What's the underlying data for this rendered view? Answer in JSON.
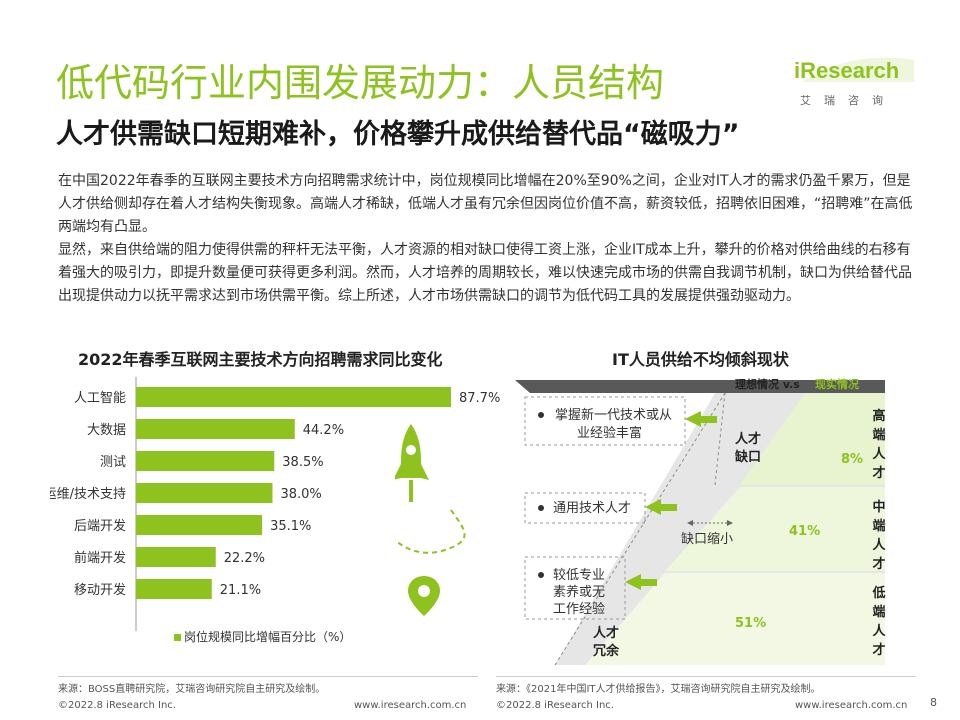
{
  "header": {
    "title": "低代码行业内围发展动力：人员结构",
    "subtitle": "人才供需缺口短期难补，价格攀升成供给替代品“磁吸力”",
    "logo_text": "iResearch",
    "logo_cn": "艾瑞咨询"
  },
  "body": {
    "paragraph1": "在中国2022年春季的互联网主要技术方向招聘需求统计中，岗位规模同比增幅在20%至90%之间，企业对IT人才的需求仍盈千累万，但是人才供给侧却存在着人才结构失衡现象。高端人才稀缺，低端人才虽有冗余但因岗位价值不高，薪资较低，招聘依旧困难，“招聘难”在高低两端均有凸显。",
    "paragraph2": "显然，来自供给端的阻力使得供需的秤杆无法平衡，人才资源的相对缺口使得工资上涨，企业IT成本上升，攀升的价格对供给曲线的右移有着强大的吸引力，即提升数量便可获得更多利润。然而，人才培养的周期较长，难以快速完成市场的供需自我调节机制，缺口为供给替代品出现提供动力以抚平需求达到市场供需平衡。综上所述，人才市场供需缺口的调节为低代码工具的发展提供强劲驱动力。"
  },
  "chart_data": [
    {
      "type": "bar",
      "orientation": "horizontal",
      "title": "2022年春季互联网主要技术方向招聘需求同比变化",
      "categories": [
        "人工智能",
        "大数据",
        "测试",
        "运维/技术支持",
        "后端开发",
        "前端开发",
        "移动开发"
      ],
      "values": [
        87.7,
        44.2,
        38.5,
        38.0,
        35.1,
        22.2,
        21.1
      ],
      "value_labels": [
        "87.7%",
        "44.2%",
        "38.5%",
        "38.0%",
        "35.1%",
        "22.2%",
        "21.1%"
      ],
      "series": [
        {
          "name": "岗位规模同比增幅百分比（%）",
          "values": [
            87.7,
            44.2,
            38.5,
            38.0,
            35.1,
            22.2,
            21.1
          ]
        }
      ],
      "legend": "bottom",
      "color": "#8dc21f"
    },
    {
      "type": "diagram",
      "title": "IT人员供给不均倾斜现状",
      "comparison_label_ideal": "理想情况 v.s",
      "comparison_label_real": "现实情况",
      "tiers": [
        {
          "name": "高端人才",
          "value": 8,
          "label": "8%",
          "note": "掌握新一代技术或从业经验丰富"
        },
        {
          "name": "中端人才",
          "value": 41,
          "label": "41%",
          "note": "通用技术人才"
        },
        {
          "name": "低端人才",
          "value": 51,
          "label": "51%",
          "note": "较低专业素养或无工作经验"
        }
      ],
      "gap_label": "人才缺口",
      "gap_shrink_label": "缺口缩小",
      "surplus_label": "人才冗余"
    }
  ],
  "footer": {
    "source_left": "来源：BOSS直聘研究院，艾瑞咨询研究院自主研究及绘制。",
    "source_right": "来源：《2021年中国IT人才供给报告》，艾瑞咨询研究院自主研究及绘制。",
    "copyright_left": "©2022.8 iResearch Inc.",
    "url_left": "www.iresearch.com.cn",
    "copyright_right": "©2022.8 iResearch Inc.",
    "url_right": "www.iresearch.com.cn",
    "page_number": "8"
  },
  "colors": {
    "accent": "#8dc21f",
    "light_green": "#e8f3d0",
    "gray": "#e6e6e6"
  }
}
